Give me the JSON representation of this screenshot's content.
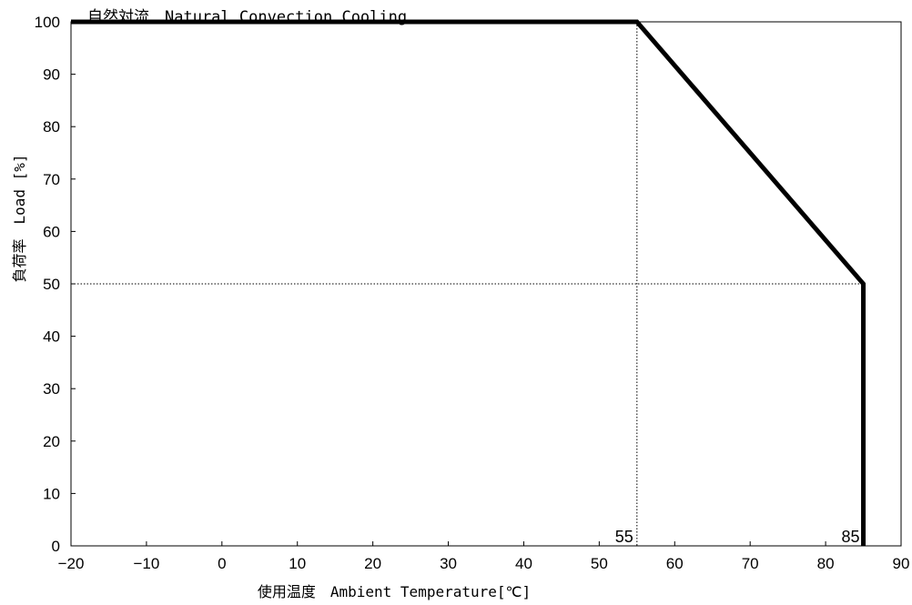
{
  "chart_data": {
    "type": "line",
    "title": "自然対流　Natural Convection Cooling",
    "xlabel": "使用温度　Ambient Temperature[℃]",
    "ylabel": "負荷率　Load [%]",
    "xlim": [
      -20,
      90
    ],
    "ylim": [
      0,
      100
    ],
    "x_ticks": [
      -20,
      -10,
      0,
      10,
      20,
      30,
      40,
      50,
      60,
      70,
      80,
      90
    ],
    "x_tick_labels": [
      "−20",
      "−10",
      "0",
      "10",
      "20",
      "30",
      "40",
      "50",
      "60",
      "70",
      "80",
      "90"
    ],
    "y_ticks": [
      0,
      10,
      20,
      30,
      40,
      50,
      60,
      70,
      80,
      90,
      100
    ],
    "y_tick_labels": [
      "0",
      "10",
      "20",
      "30",
      "40",
      "50",
      "60",
      "70",
      "80",
      "90",
      "100"
    ],
    "grid": false,
    "series": [
      {
        "x": [
          -20,
          55,
          85,
          85
        ],
        "y": [
          100,
          100,
          50,
          0
        ]
      }
    ],
    "reference_lines": [
      {
        "axis": "x",
        "value": 55,
        "style": "dotted"
      },
      {
        "axis": "y",
        "value": 50,
        "style": "dotted"
      }
    ],
    "annotations": [
      {
        "text": "55",
        "x": 55,
        "y": 0
      },
      {
        "text": "85",
        "x": 85,
        "y": 0
      }
    ]
  }
}
